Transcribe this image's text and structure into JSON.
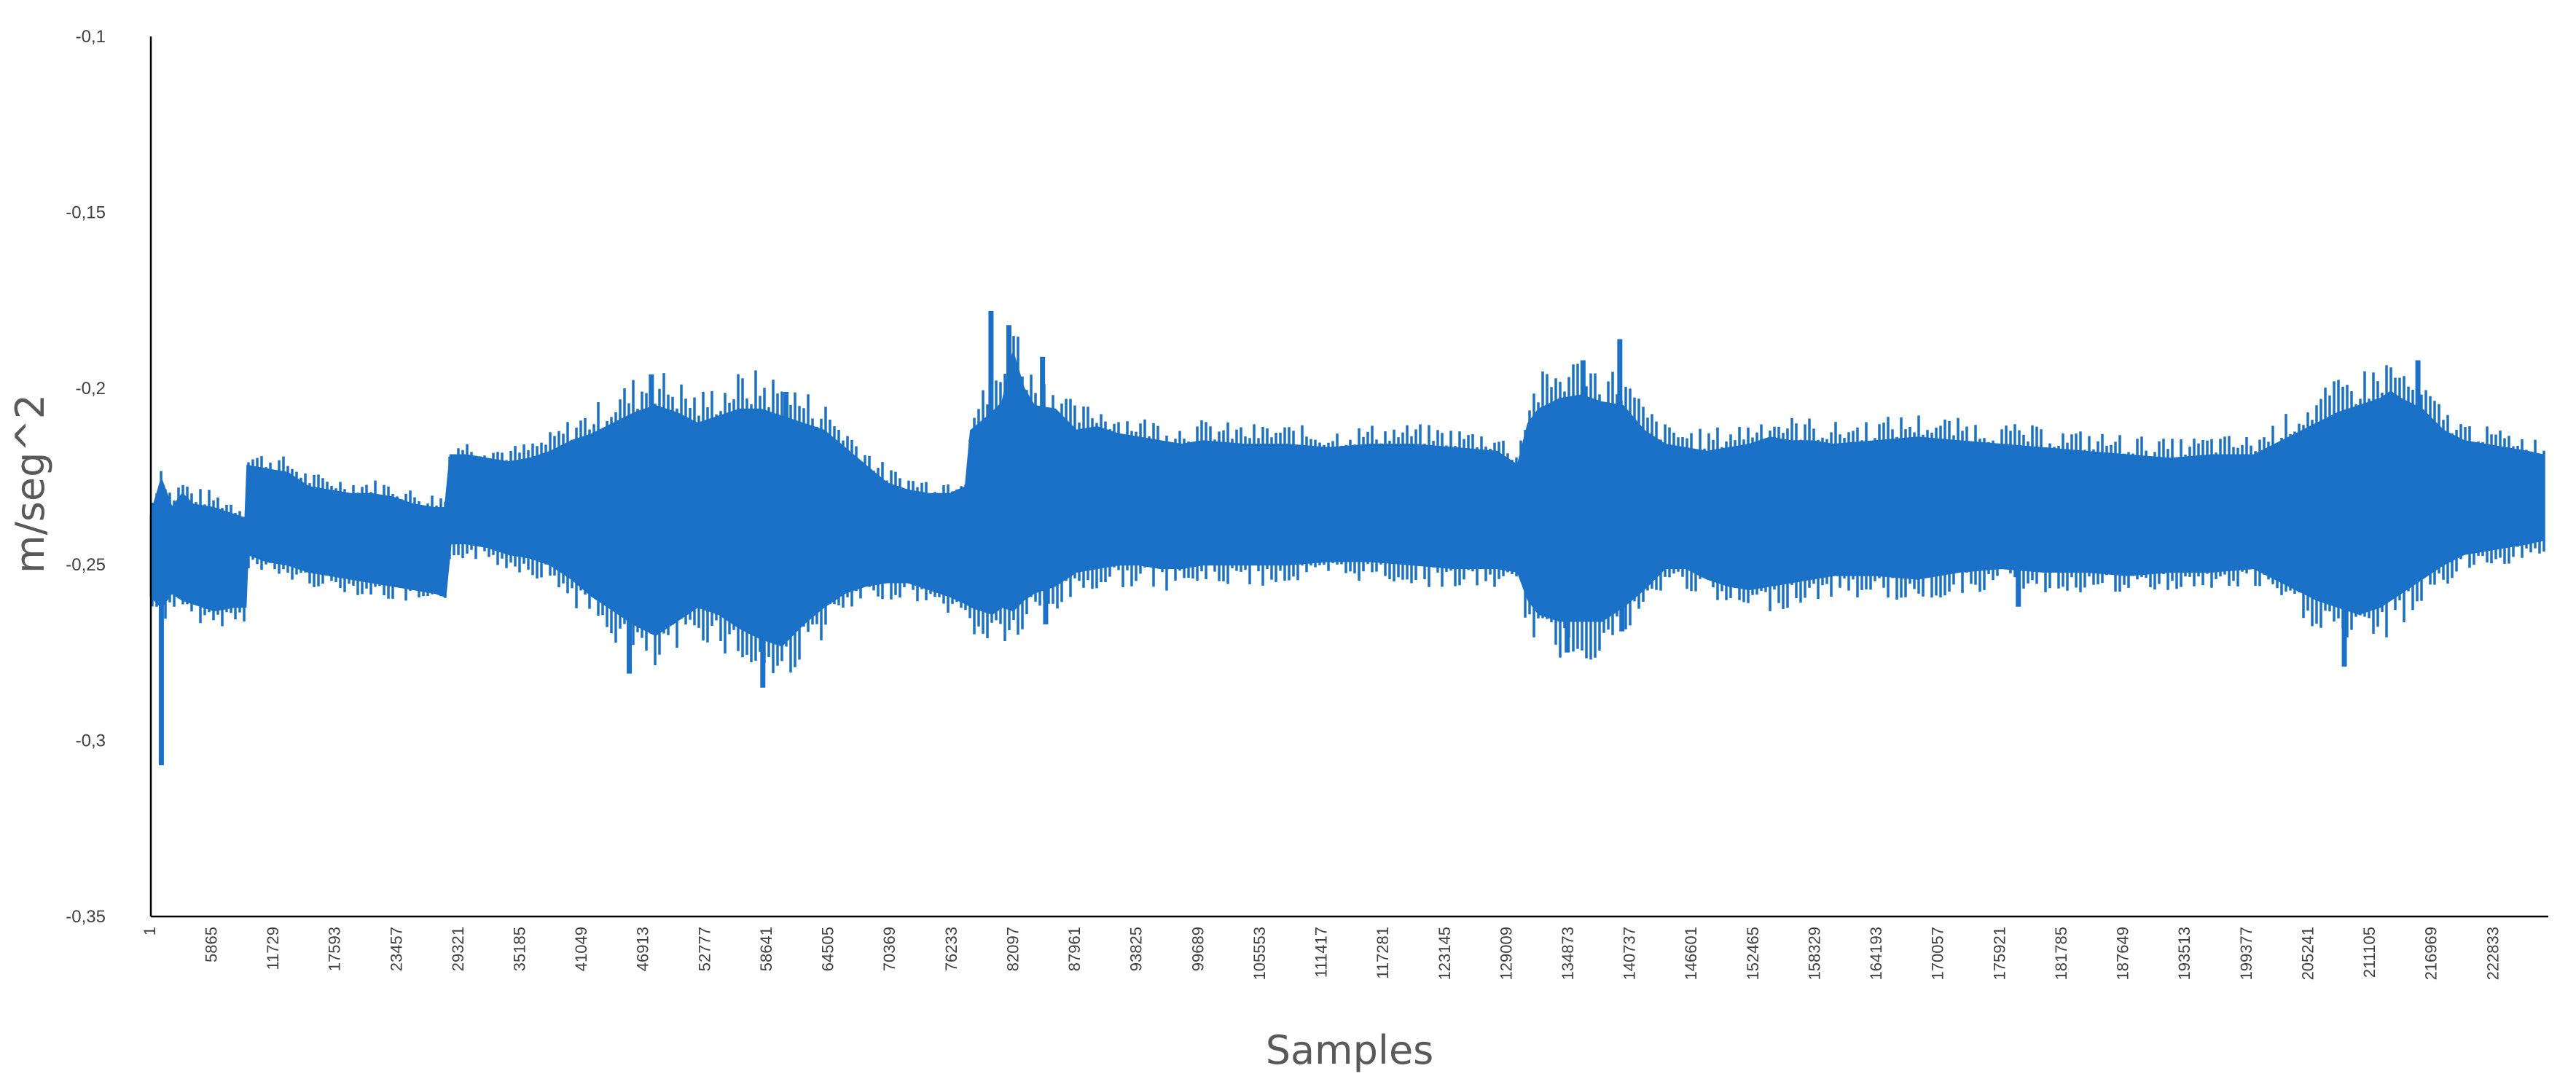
{
  "chart_data": {
    "type": "line",
    "title": "",
    "xlabel": "Samples",
    "ylabel": "m/seg^2",
    "ylim": [
      -0.35,
      -0.1
    ],
    "xlim": [
      1,
      228000
    ],
    "grid": false,
    "legend": "none",
    "y_ticks": [
      "-0,1",
      "-0,15",
      "-0,2",
      "-0,25",
      "-0,3",
      "-0,35"
    ],
    "y_tick_values": [
      -0.1,
      -0.15,
      -0.2,
      -0.25,
      -0.3,
      -0.35
    ],
    "x_ticks": [
      "1",
      "5865",
      "11729",
      "17593",
      "23457",
      "29321",
      "35185",
      "41049",
      "46913",
      "52777",
      "58641",
      "64505",
      "70369",
      "76233",
      "82097",
      "87961",
      "93825",
      "99689",
      "105553",
      "111417",
      "117281",
      "123145",
      "129009",
      "134873",
      "140737",
      "146601",
      "152465",
      "158329",
      "164193",
      "170057",
      "175921",
      "181785",
      "187649",
      "193513",
      "199377",
      "205241",
      "211105",
      "216969",
      "222833"
    ],
    "x_tick_values": [
      1,
      5865,
      11729,
      17593,
      23457,
      29321,
      35185,
      41049,
      46913,
      52777,
      58641,
      64505,
      70369,
      76233,
      82097,
      87961,
      93825,
      99689,
      105553,
      111417,
      117281,
      123145,
      129009,
      134873,
      140737,
      146601,
      152465,
      158329,
      164193,
      170057,
      175921,
      181785,
      187649,
      193513,
      199377,
      205241,
      211105,
      216969,
      222833
    ],
    "series": [
      {
        "color": "#1b71c6",
        "x": [
          1,
          1000,
          2000,
          3000,
          4000,
          6000,
          8000,
          9000,
          9200,
          11000,
          13000,
          15000,
          17000,
          19000,
          21000,
          23000,
          25000,
          27000,
          28000,
          28500,
          30000,
          32000,
          34000,
          36000,
          38000,
          40000,
          42000,
          44000,
          46000,
          48000,
          50000,
          52000,
          54000,
          56000,
          58000,
          60000,
          62000,
          64000,
          66000,
          68000,
          70000,
          72000,
          74000,
          76000,
          77500,
          78000,
          80000,
          81000,
          82000,
          83000,
          84000,
          86000,
          88000,
          90000,
          92000,
          94000,
          96000,
          98000,
          100000,
          104000,
          108000,
          112000,
          116000,
          120000,
          124000,
          128000,
          130000,
          131000,
          132000,
          134000,
          136000,
          138000,
          140000,
          142000,
          144000,
          146000,
          148000,
          150000,
          152000,
          154000,
          156000,
          158000,
          160000,
          164000,
          168000,
          172000,
          176000,
          180000,
          184000,
          188000,
          192000,
          196000,
          200000,
          202000,
          204000,
          206000,
          208000,
          210000,
          212000,
          213000,
          214000,
          216000,
          218000,
          220000,
          222000,
          224000,
          226000,
          227500
        ],
        "y_upper": [
          -0.236,
          -0.226,
          -0.234,
          -0.23,
          -0.233,
          -0.234,
          -0.236,
          -0.237,
          -0.222,
          -0.223,
          -0.224,
          -0.228,
          -0.229,
          -0.23,
          -0.23,
          -0.231,
          -0.233,
          -0.234,
          -0.234,
          -0.219,
          -0.219,
          -0.22,
          -0.221,
          -0.22,
          -0.218,
          -0.215,
          -0.213,
          -0.21,
          -0.207,
          -0.205,
          -0.207,
          -0.21,
          -0.208,
          -0.206,
          -0.206,
          -0.208,
          -0.21,
          -0.212,
          -0.217,
          -0.222,
          -0.227,
          -0.229,
          -0.23,
          -0.23,
          -0.228,
          -0.212,
          -0.207,
          -0.204,
          -0.19,
          -0.2,
          -0.205,
          -0.206,
          -0.212,
          -0.211,
          -0.213,
          -0.214,
          -0.215,
          -0.216,
          -0.215,
          -0.216,
          -0.216,
          -0.217,
          -0.216,
          -0.216,
          -0.217,
          -0.218,
          -0.222,
          -0.21,
          -0.206,
          -0.203,
          -0.202,
          -0.204,
          -0.205,
          -0.212,
          -0.216,
          -0.217,
          -0.218,
          -0.217,
          -0.216,
          -0.214,
          -0.215,
          -0.215,
          -0.216,
          -0.215,
          -0.214,
          -0.215,
          -0.216,
          -0.217,
          -0.218,
          -0.219,
          -0.22,
          -0.219,
          -0.219,
          -0.216,
          -0.213,
          -0.21,
          -0.207,
          -0.205,
          -0.203,
          -0.201,
          -0.203,
          -0.206,
          -0.212,
          -0.215,
          -0.216,
          -0.217,
          -0.218,
          -0.219
        ],
        "y_lower": [
          -0.259,
          -0.262,
          -0.258,
          -0.26,
          -0.261,
          -0.263,
          -0.262,
          -0.262,
          -0.247,
          -0.249,
          -0.25,
          -0.252,
          -0.253,
          -0.254,
          -0.255,
          -0.256,
          -0.257,
          -0.258,
          -0.259,
          -0.244,
          -0.244,
          -0.245,
          -0.247,
          -0.248,
          -0.25,
          -0.254,
          -0.259,
          -0.263,
          -0.267,
          -0.27,
          -0.266,
          -0.262,
          -0.264,
          -0.268,
          -0.271,
          -0.273,
          -0.267,
          -0.262,
          -0.258,
          -0.256,
          -0.255,
          -0.255,
          -0.257,
          -0.259,
          -0.261,
          -0.262,
          -0.264,
          -0.262,
          -0.263,
          -0.26,
          -0.258,
          -0.256,
          -0.252,
          -0.251,
          -0.25,
          -0.25,
          -0.251,
          -0.251,
          -0.25,
          -0.25,
          -0.25,
          -0.249,
          -0.249,
          -0.25,
          -0.251,
          -0.251,
          -0.252,
          -0.26,
          -0.264,
          -0.266,
          -0.266,
          -0.266,
          -0.262,
          -0.257,
          -0.251,
          -0.251,
          -0.254,
          -0.256,
          -0.257,
          -0.256,
          -0.255,
          -0.254,
          -0.253,
          -0.253,
          -0.254,
          -0.252,
          -0.251,
          -0.252,
          -0.252,
          -0.253,
          -0.252,
          -0.252,
          -0.251,
          -0.254,
          -0.257,
          -0.26,
          -0.262,
          -0.264,
          -0.262,
          -0.26,
          -0.258,
          -0.254,
          -0.25,
          -0.247,
          -0.246,
          -0.245,
          -0.244,
          -0.243
        ],
        "spikes": [
          {
            "x": 1000,
            "y": -0.307
          },
          {
            "x": 45500,
            "y": -0.281
          },
          {
            "x": 47600,
            "y": -0.196
          },
          {
            "x": 58200,
            "y": -0.285
          },
          {
            "x": 60400,
            "y": -0.201
          },
          {
            "x": 79900,
            "y": -0.178
          },
          {
            "x": 81600,
            "y": -0.182
          },
          {
            "x": 84800,
            "y": -0.191
          },
          {
            "x": 85100,
            "y": -0.267
          },
          {
            "x": 134700,
            "y": -0.275
          },
          {
            "x": 136200,
            "y": -0.192
          },
          {
            "x": 139700,
            "y": -0.186
          },
          {
            "x": 139900,
            "y": -0.269
          },
          {
            "x": 177600,
            "y": -0.262
          },
          {
            "x": 208600,
            "y": -0.279
          },
          {
            "x": 215600,
            "y": -0.192
          },
          {
            "x": 217600,
            "y": -0.238
          }
        ]
      }
    ]
  }
}
